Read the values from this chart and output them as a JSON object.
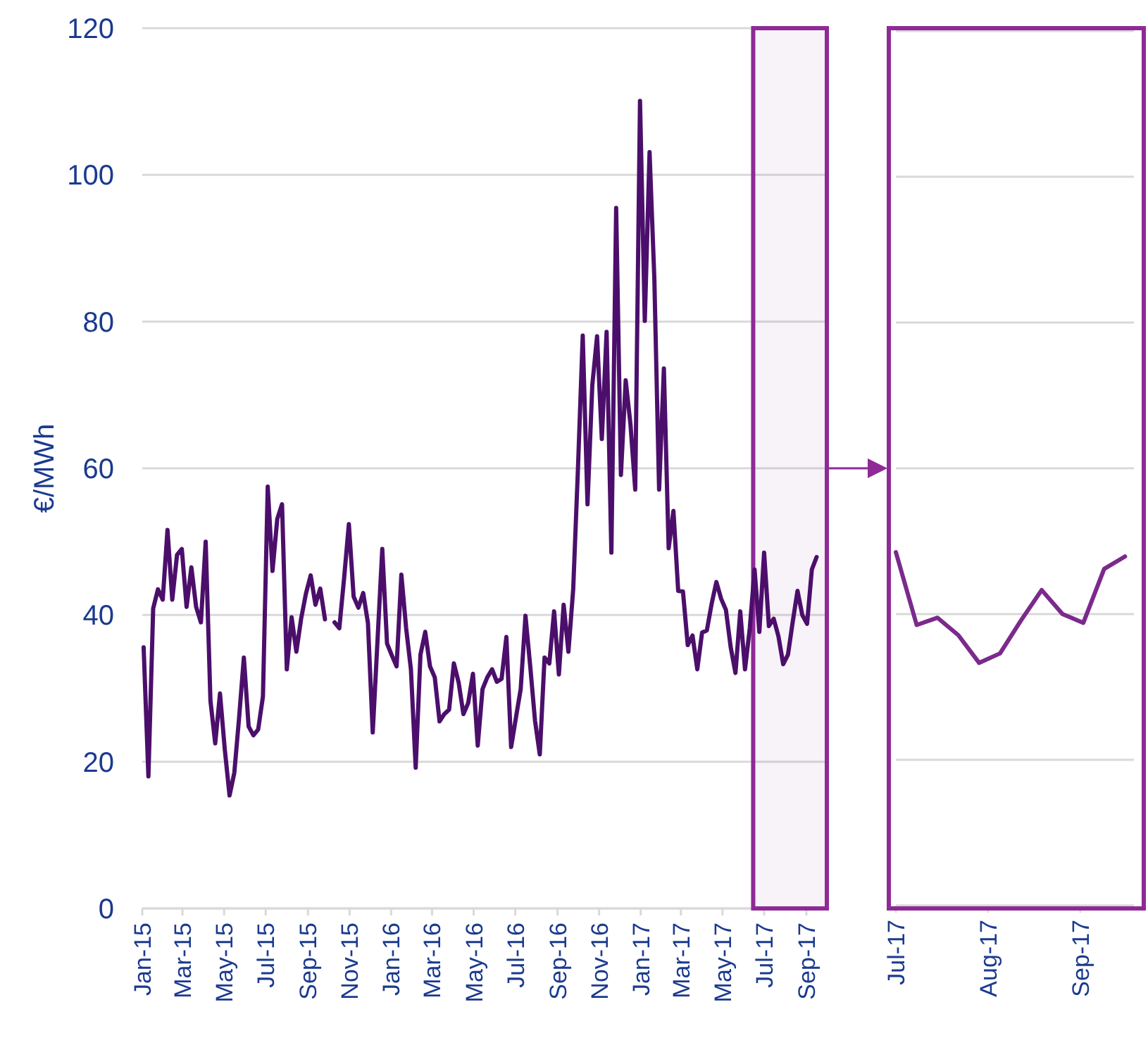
{
  "chart_data": [
    {
      "type": "line",
      "ylabel": "€/MWh",
      "xlim": [
        "2015-01-01",
        "2017-10-01"
      ],
      "ylim": [
        0,
        120
      ],
      "yticks": [
        0,
        20,
        40,
        60,
        80,
        100,
        120
      ],
      "grid": "y",
      "bands": [
        {
          "axis": "x",
          "from": "2017-06-15",
          "to": "2017-10-01",
          "color": "#8e2a96"
        }
      ],
      "xticks": [
        {
          "value": "2015-01-01",
          "label": "Jan-15"
        },
        {
          "value": "2015-03-01",
          "label": "Mar-15"
        },
        {
          "value": "2015-05-01",
          "label": "May-15"
        },
        {
          "value": "2015-07-01",
          "label": "Jul-15"
        },
        {
          "value": "2015-09-01",
          "label": "Sep-15"
        },
        {
          "value": "2015-11-01",
          "label": "Nov-15"
        },
        {
          "value": "2016-01-01",
          "label": "Jan-16"
        },
        {
          "value": "2016-03-01",
          "label": "Mar-16"
        },
        {
          "value": "2016-05-01",
          "label": "May-16"
        },
        {
          "value": "2016-07-01",
          "label": "Jul-16"
        },
        {
          "value": "2016-09-01",
          "label": "Sep-16"
        },
        {
          "value": "2016-11-01",
          "label": "Nov-16"
        },
        {
          "value": "2017-01-01",
          "label": "Jan-17"
        },
        {
          "value": "2017-03-01",
          "label": "Mar-17"
        },
        {
          "value": "2017-05-01",
          "label": "May-17"
        },
        {
          "value": "2017-07-01",
          "label": "Jul-17"
        },
        {
          "value": "2017-09-01",
          "label": "Sep-17"
        }
      ],
      "x": [
        "2015-01-03",
        "2015-01-10",
        "2015-01-17",
        "2015-01-24",
        "2015-01-31",
        "2015-02-07",
        "2015-02-14",
        "2015-02-21",
        "2015-02-28",
        "2015-03-07",
        "2015-03-14",
        "2015-03-21",
        "2015-03-28",
        "2015-04-04",
        "2015-04-11",
        "2015-04-18",
        "2015-04-25",
        "2015-05-02",
        "2015-05-09",
        "2015-05-16",
        "2015-05-23",
        "2015-05-30",
        "2015-06-06",
        "2015-06-13",
        "2015-06-20",
        "2015-06-27",
        "2015-07-04",
        "2015-07-11",
        "2015-07-18",
        "2015-07-25",
        "2015-08-01",
        "2015-08-08",
        "2015-08-15",
        "2015-08-22",
        "2015-08-29",
        "2015-09-05",
        "2015-09-12",
        "2015-09-19",
        "2015-09-26",
        "2015-10-03",
        "2015-10-10",
        "2015-10-17",
        "2015-10-24",
        "2015-10-31",
        "2015-11-07",
        "2015-11-14",
        "2015-11-21",
        "2015-11-28",
        "2015-12-05",
        "2015-12-12",
        "2015-12-19",
        "2015-12-26",
        "2016-01-02",
        "2016-01-09",
        "2016-01-16",
        "2016-01-23",
        "2016-01-30",
        "2016-02-06",
        "2016-02-13",
        "2016-02-20",
        "2016-02-27",
        "2016-03-05",
        "2016-03-12",
        "2016-03-19",
        "2016-03-26",
        "2016-04-02",
        "2016-04-09",
        "2016-04-16",
        "2016-04-23",
        "2016-04-30",
        "2016-05-07",
        "2016-05-14",
        "2016-05-21",
        "2016-05-28",
        "2016-06-04",
        "2016-06-11",
        "2016-06-18",
        "2016-06-25",
        "2016-07-02",
        "2016-07-09",
        "2016-07-16",
        "2016-07-23",
        "2016-07-30",
        "2016-08-06",
        "2016-08-13",
        "2016-08-20",
        "2016-08-27",
        "2016-09-03",
        "2016-09-10",
        "2016-09-17",
        "2016-09-24",
        "2016-10-01",
        "2016-10-08",
        "2016-10-15",
        "2016-10-22",
        "2016-10-29",
        "2016-11-05",
        "2016-11-12",
        "2016-11-19",
        "2016-11-26",
        "2016-12-03",
        "2016-12-10",
        "2016-12-17",
        "2016-12-24",
        "2016-12-31",
        "2017-01-07",
        "2017-01-14",
        "2017-01-21",
        "2017-01-28",
        "2017-02-04",
        "2017-02-11",
        "2017-02-18",
        "2017-02-25",
        "2017-03-04",
        "2017-03-11",
        "2017-03-18",
        "2017-03-25",
        "2017-04-01",
        "2017-04-08",
        "2017-04-15",
        "2017-04-22",
        "2017-04-29",
        "2017-05-06",
        "2017-05-13",
        "2017-05-20",
        "2017-05-27",
        "2017-06-03",
        "2017-06-10",
        "2017-06-17",
        "2017-06-24",
        "2017-07-01",
        "2017-07-08",
        "2017-07-15",
        "2017-07-22",
        "2017-07-29",
        "2017-08-05",
        "2017-08-12",
        "2017-08-19",
        "2017-08-26",
        "2017-09-02",
        "2017-09-09",
        "2017-09-16"
      ],
      "series": [
        {
          "color": "#4b0f6b",
          "values": [
            35.6,
            18.0,
            40.9,
            43.5,
            42.1,
            51.6,
            42.1,
            48.2,
            49.0,
            41.1,
            46.5,
            41.1,
            39.0,
            50.0,
            28.3,
            22.5,
            29.3,
            21.7,
            15.4,
            18.5,
            26.0,
            34.2,
            24.8,
            23.6,
            24.4,
            28.9,
            57.5,
            46.0,
            53.1,
            55.1,
            32.6,
            39.7,
            35.0,
            39.5,
            42.9,
            45.4,
            41.4,
            43.6,
            39.4,
            null,
            39.0,
            38.2,
            45.0,
            52.4,
            42.5,
            41.0,
            43.0,
            38.9,
            24.0,
            36.5,
            49.0,
            36.1,
            34.5,
            33.0,
            45.5,
            38.2,
            32.6,
            19.2,
            34.6,
            37.7,
            33.0,
            31.5,
            25.5,
            26.5,
            27.1,
            33.4,
            30.8,
            26.5,
            28.0,
            32.0,
            22.2,
            29.9,
            31.5,
            32.6,
            30.9,
            31.3,
            37.0,
            22.0,
            26.0,
            29.9,
            39.9,
            33.0,
            25.6,
            21.0,
            34.2,
            33.4,
            40.5,
            31.9,
            41.4,
            35.0,
            43.5,
            60.0,
            78.1,
            55.1,
            71.3,
            78.0,
            64.0,
            78.6,
            48.5,
            95.5,
            59.1,
            72.0,
            66.0,
            57.1,
            110.1,
            80.1,
            103.1,
            85.9,
            57.1,
            73.6,
            49.1,
            54.2,
            43.3,
            43.2,
            35.9,
            37.2,
            32.6,
            37.6,
            37.9,
            41.5,
            44.5,
            42.2,
            40.7,
            35.6,
            32.1,
            40.5,
            32.6,
            38.2,
            46.2,
            37.7,
            48.5,
            38.5,
            39.5,
            37.1,
            33.3,
            34.6,
            39.1,
            43.3,
            40.0,
            38.8,
            46.2,
            47.9
          ]
        }
      ]
    },
    {
      "type": "line",
      "xlim": [
        "2017-07-01",
        "2017-09-19"
      ],
      "ylim": [
        0,
        120
      ],
      "yticks": [
        0,
        20,
        40,
        60,
        80,
        100,
        120
      ],
      "grid": "y",
      "tick_labels": "x",
      "xticks": [
        {
          "value": "2017-07-01",
          "label": "Jul-17"
        },
        {
          "value": "2017-08-01",
          "label": "Aug-17"
        },
        {
          "value": "2017-09-01",
          "label": "Sep-17"
        }
      ],
      "x": [
        "2017-07-01",
        "2017-07-08",
        "2017-07-15",
        "2017-07-22",
        "2017-07-29",
        "2017-08-05",
        "2017-08-12",
        "2017-08-19",
        "2017-08-26",
        "2017-09-02",
        "2017-09-09",
        "2017-09-16"
      ],
      "series": [
        {
          "color": "#7b2a8c",
          "values": [
            48.5,
            38.5,
            39.5,
            37.1,
            33.3,
            34.6,
            39.1,
            43.3,
            40.0,
            38.8,
            46.2,
            47.9
          ]
        }
      ]
    }
  ]
}
